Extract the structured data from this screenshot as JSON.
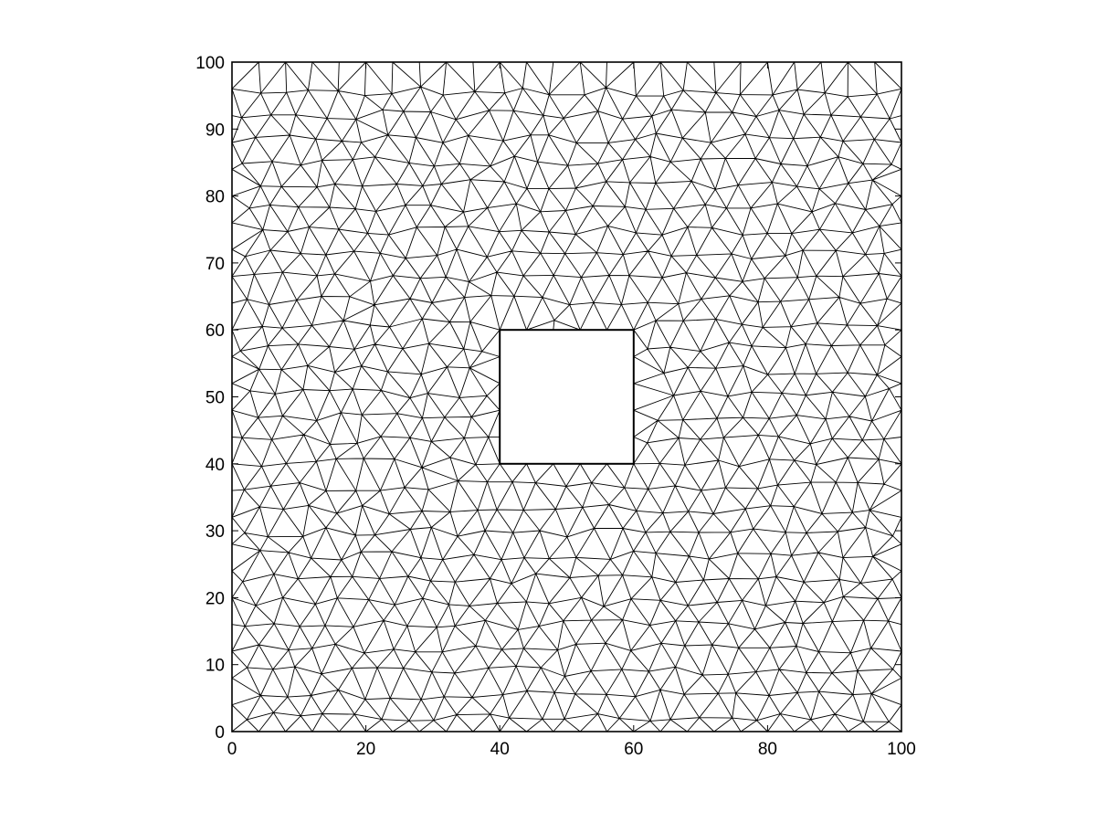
{
  "chart_data": {
    "type": "mesh",
    "title": "",
    "xlabel": "",
    "ylabel": "",
    "xlim": [
      0,
      100
    ],
    "ylim": [
      0,
      100
    ],
    "x_ticks": [
      0,
      20,
      40,
      60,
      80,
      100
    ],
    "y_ticks": [
      0,
      10,
      20,
      30,
      40,
      50,
      60,
      70,
      80,
      90,
      100
    ],
    "x_tick_labels": [
      "0",
      "20",
      "40",
      "60",
      "80",
      "100"
    ],
    "y_tick_labels": [
      "0",
      "10",
      "20",
      "30",
      "40",
      "50",
      "60",
      "70",
      "80",
      "90",
      "100"
    ],
    "domain": {
      "x": [
        0,
        100
      ],
      "y": [
        0,
        100
      ]
    },
    "hole": {
      "x": [
        40,
        60
      ],
      "y": [
        40,
        60
      ]
    },
    "mesh": {
      "element": "triangle",
      "target_edge_length": 4
    },
    "colors": {
      "edges": "#000000",
      "background": "#ffffff"
    },
    "grid": false
  }
}
